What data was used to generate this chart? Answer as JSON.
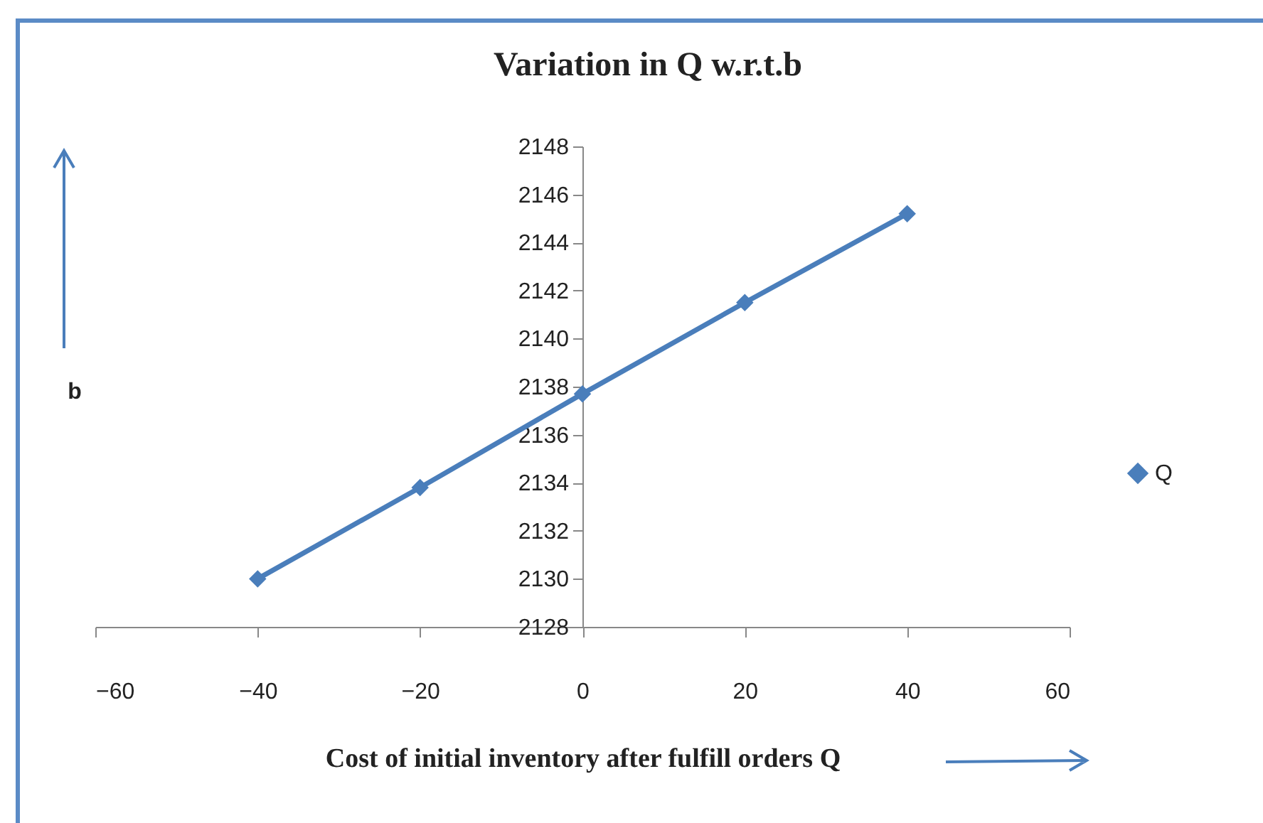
{
  "chart_data": {
    "type": "line",
    "title": "Variation in Q w.r.t.b",
    "xlabel": "Cost of initial inventory after fulfill orders Q",
    "ylabel": "b",
    "x": [
      -40,
      -20,
      0,
      20,
      40
    ],
    "series": [
      {
        "name": "Q",
        "color": "#4a7ebb",
        "values": [
          2130.0,
          2133.8,
          2137.7,
          2141.5,
          2145.2
        ]
      }
    ],
    "xlim": [
      -60,
      60
    ],
    "xticks": [
      -60,
      -40,
      -20,
      0,
      20,
      40,
      60
    ],
    "ylim": [
      2128,
      2148
    ],
    "yticks": [
      2128,
      2130,
      2132,
      2134,
      2136,
      2138,
      2140,
      2142,
      2144,
      2146,
      2148
    ],
    "legend": "right",
    "marker": "diamond"
  }
}
